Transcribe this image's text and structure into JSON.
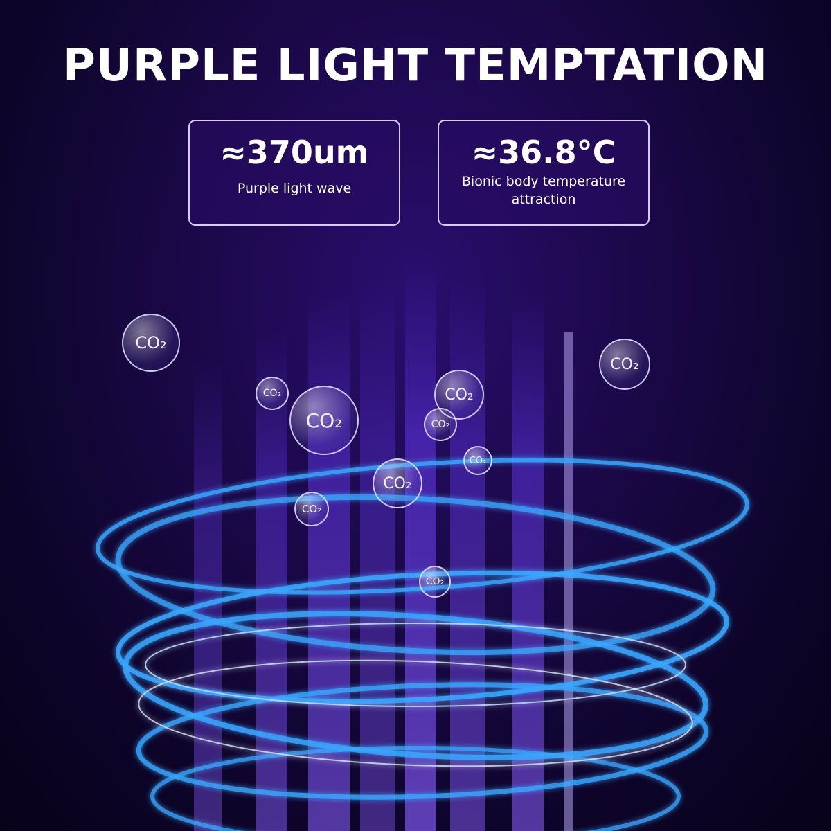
{
  "title": "PURPLE LIGHT TEMPTATION",
  "cards": [
    {
      "value": "≈370um",
      "label": "Purple light wave"
    },
    {
      "value": "≈36.8°C",
      "label": "Bionic body temperature attraction"
    }
  ],
  "bubble_label": "CO₂",
  "colors": {
    "background": "#1a0847",
    "rings": "#3aa8ff",
    "stripes": "#6a3cff"
  }
}
